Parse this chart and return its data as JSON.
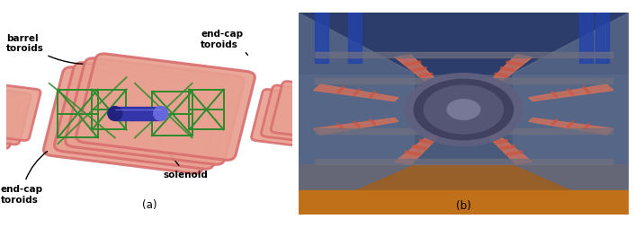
{
  "fig_width": 7.06,
  "fig_height": 2.55,
  "dpi": 100,
  "background_color": "#ffffff",
  "caption_a": "(a)",
  "caption_b": "(b)",
  "label_barrel": "barrel\ntoroids",
  "label_endcap_top": "end-cap\ntoroids",
  "label_endcap_bot": "end-cap\ntoroids",
  "label_solenoid": "solenoid",
  "barrel_color": "#d97070",
  "barrel_face": "#e8a090",
  "solenoid_color": "#3535aa",
  "solenoid_face": "#5555cc",
  "solenoid_top": "#6666dd",
  "solenoid_dark": "#222280",
  "green": "#2d8c2d",
  "text_color": "#000000",
  "font_size": 7.5,
  "photo_bg": "#3a4a6a",
  "photo_floor": "#c87020",
  "photo_coil": "#c87060",
  "photo_blue": "#3050a0",
  "photo_silver": "#909090"
}
